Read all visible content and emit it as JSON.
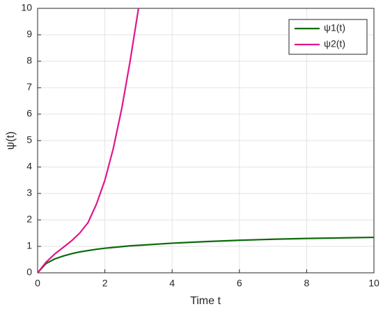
{
  "chart_data": {
    "type": "line",
    "xlabel": "Time t",
    "ylabel": "ψ(t)",
    "x": [
      0,
      0.25,
      0.5,
      0.75,
      1,
      1.25,
      1.5,
      1.75,
      2,
      2.25,
      2.5,
      2.75,
      3,
      4,
      5,
      6,
      7,
      8,
      9,
      10
    ],
    "series": [
      {
        "name": "ψ1(t)",
        "color": "#0b6a0b",
        "values": [
          0,
          0.35,
          0.52,
          0.63,
          0.72,
          0.79,
          0.84,
          0.89,
          0.93,
          0.96,
          0.99,
          1.02,
          1.04,
          1.12,
          1.18,
          1.23,
          1.27,
          1.3,
          1.32,
          1.34
        ]
      },
      {
        "name": "ψ2(t)",
        "color": "#e0168c",
        "values": [
          0,
          0.4,
          0.7,
          0.95,
          1.2,
          1.5,
          1.9,
          2.6,
          3.5,
          4.7,
          6.2,
          8.0,
          10,
          null,
          null,
          null,
          null,
          null,
          null,
          null
        ]
      }
    ],
    "xlim": [
      0,
      10
    ],
    "xticks": [
      0,
      2,
      4,
      6,
      8,
      10
    ],
    "ylim": [
      0,
      10
    ],
    "yticks": [
      0,
      1,
      2,
      3,
      4,
      5,
      6,
      7,
      8,
      9,
      10
    ],
    "grid": true,
    "legend": "upper-right"
  }
}
